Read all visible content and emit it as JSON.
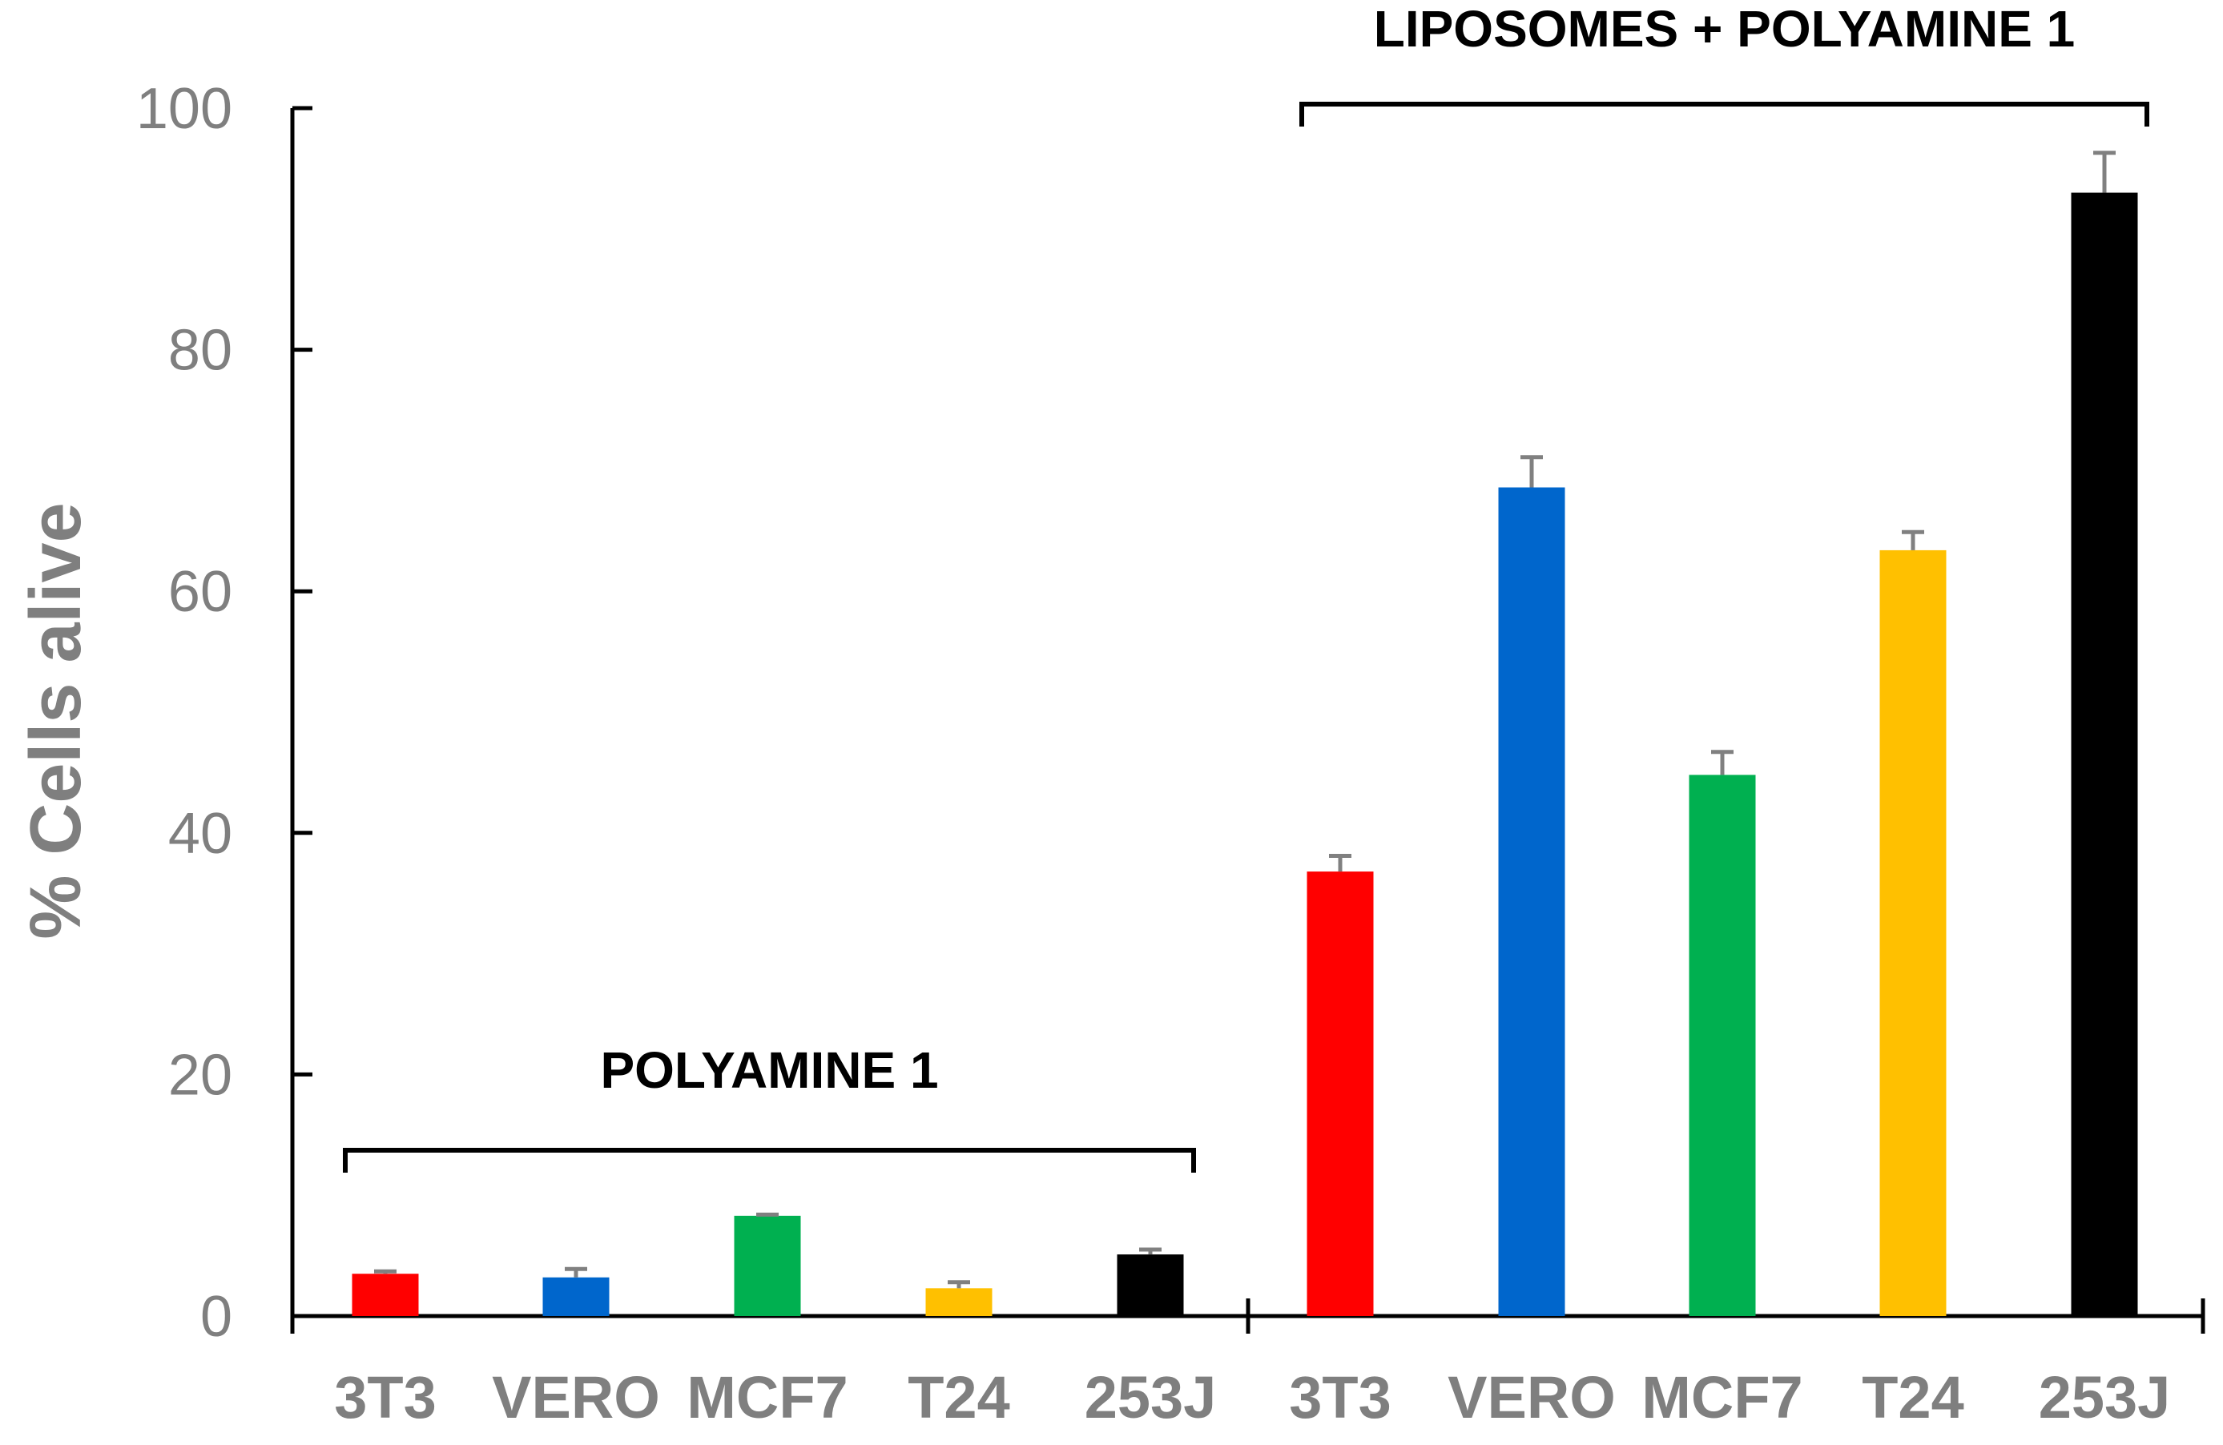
{
  "chart_data": {
    "type": "bar",
    "ylabel": "% Cells alive",
    "ylim": [
      0,
      100
    ],
    "yticks": [
      0,
      20,
      40,
      60,
      80,
      100
    ],
    "groups": [
      {
        "label": "POLYAMINE 1",
        "categories": [
          "3T3",
          "VERO",
          "MCF7",
          "T24",
          "253J"
        ],
        "values": [
          3.5,
          3.2,
          8.3,
          2.3,
          5.1
        ],
        "errors": [
          0.2,
          0.7,
          0.1,
          0.5,
          0.4
        ]
      },
      {
        "label": "LIPOSOMES + POLYAMINE 1",
        "categories": [
          "3T3",
          "VERO",
          "MCF7",
          "T24",
          "253J"
        ],
        "values": [
          36.8,
          68.6,
          44.8,
          63.4,
          93.0
        ],
        "errors": [
          1.3,
          2.5,
          1.9,
          1.5,
          3.3
        ]
      }
    ],
    "colors": [
      "#ff0000",
      "#0066cc",
      "#00b050",
      "#ffc000",
      "#000000"
    ],
    "error_bar_color": "#808080"
  }
}
